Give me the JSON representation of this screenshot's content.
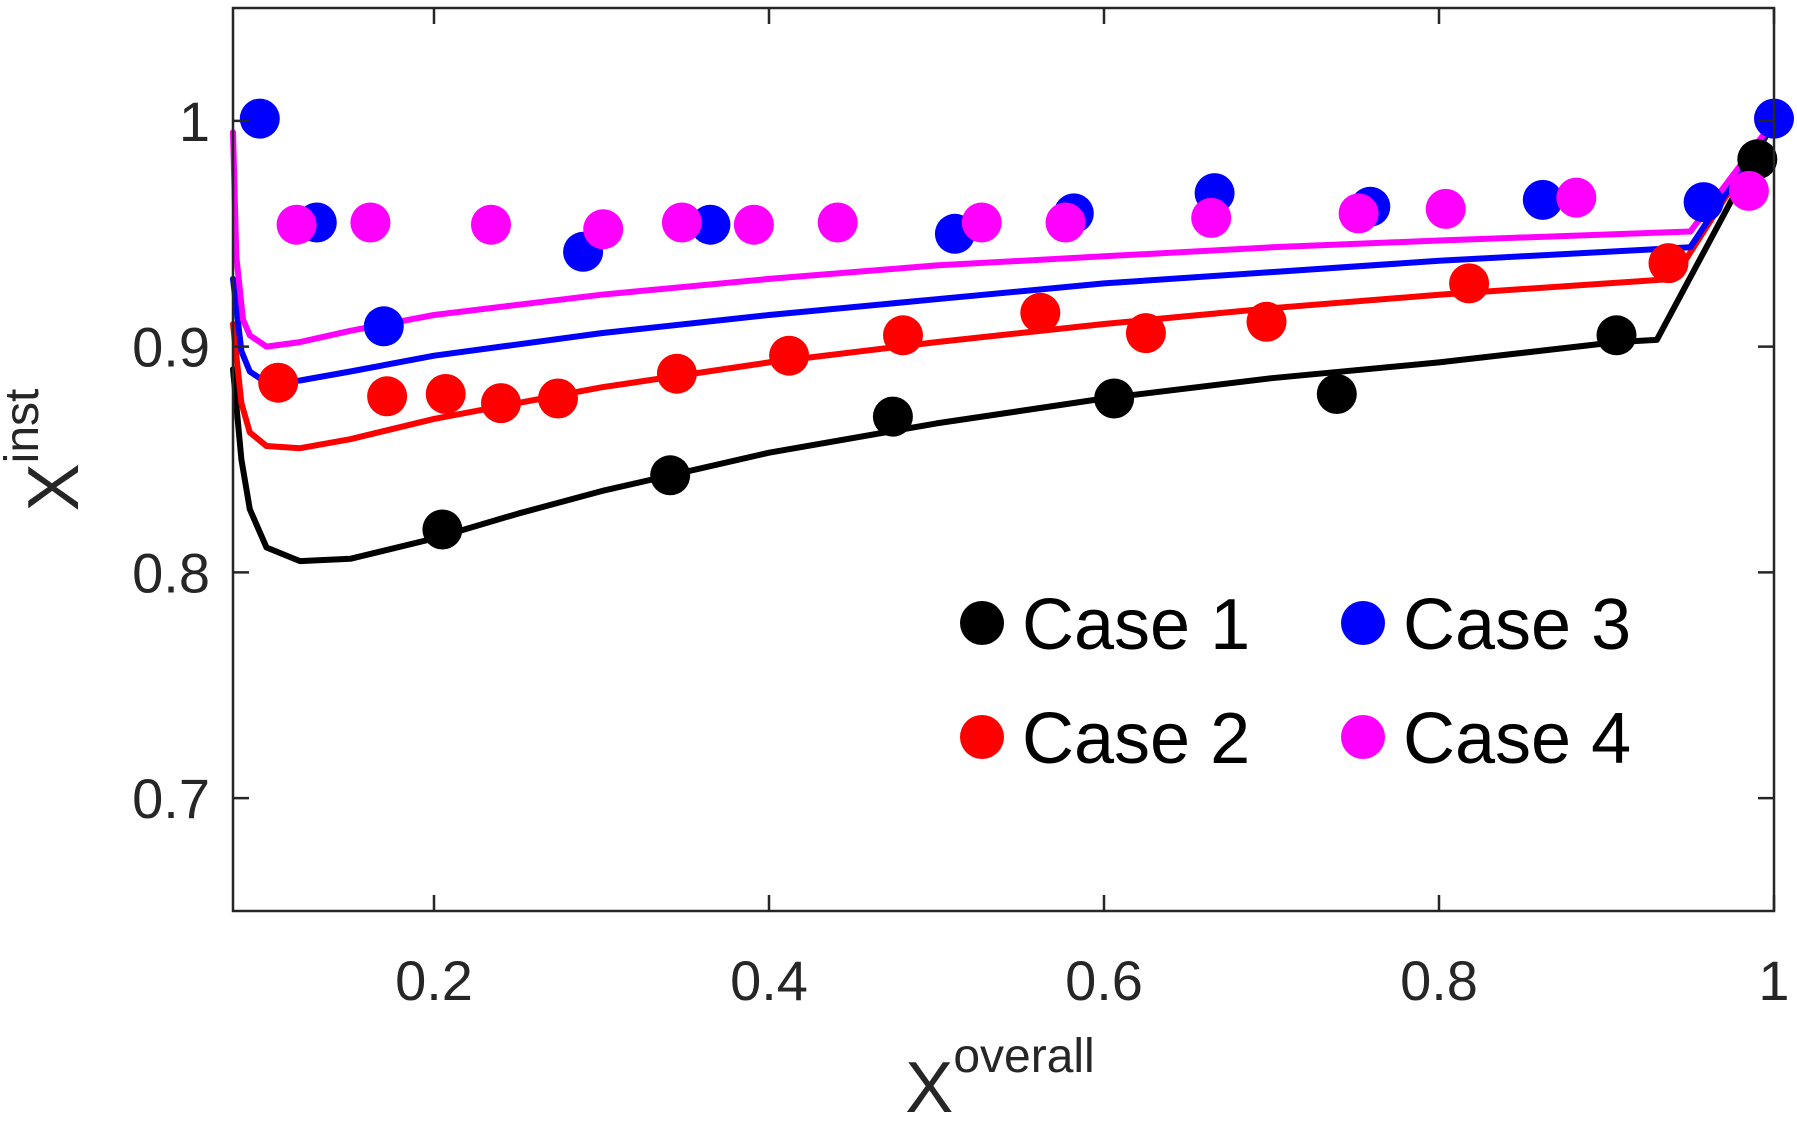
{
  "chart_data": {
    "type": "scatter",
    "title": "",
    "xlabel": {
      "base": "X",
      "sup": "overall"
    },
    "ylabel": {
      "base": "X",
      "sup": "inst"
    },
    "xlim": [
      0.08,
      1.0
    ],
    "ylim": [
      0.65,
      1.05
    ],
    "xticks": [
      0.2,
      0.4,
      0.6,
      0.8,
      1.0
    ],
    "xtick_labels": [
      "0.2",
      "0.4",
      "0.6",
      "0.8",
      "1"
    ],
    "yticks": [
      0.7,
      0.8,
      0.9,
      1.0
    ],
    "ytick_labels": [
      "0.7",
      "0.8",
      "0.9",
      "1"
    ],
    "grid": false,
    "legend_position": "lower-right",
    "series": [
      {
        "name": "Case 1",
        "color": "#000000",
        "points": [
          [
            0.205,
            0.819
          ],
          [
            0.341,
            0.843
          ],
          [
            0.474,
            0.869
          ],
          [
            0.606,
            0.877
          ],
          [
            0.739,
            0.879
          ],
          [
            0.906,
            0.905
          ],
          [
            0.99,
            0.983
          ]
        ],
        "fit": [
          [
            0.08,
            0.89
          ],
          [
            0.085,
            0.85
          ],
          [
            0.09,
            0.828
          ],
          [
            0.1,
            0.811
          ],
          [
            0.12,
            0.805
          ],
          [
            0.15,
            0.806
          ],
          [
            0.2,
            0.815
          ],
          [
            0.25,
            0.826
          ],
          [
            0.3,
            0.836
          ],
          [
            0.4,
            0.853
          ],
          [
            0.5,
            0.866
          ],
          [
            0.6,
            0.877
          ],
          [
            0.7,
            0.886
          ],
          [
            0.8,
            0.893
          ],
          [
            0.906,
            0.902
          ],
          [
            0.93,
            0.903
          ],
          [
            1.0,
            1.0
          ]
        ]
      },
      {
        "name": "Case 2",
        "color": "#ff0000",
        "points": [
          [
            0.107,
            0.884
          ],
          [
            0.172,
            0.878
          ],
          [
            0.207,
            0.879
          ],
          [
            0.24,
            0.875
          ],
          [
            0.274,
            0.877
          ],
          [
            0.345,
            0.888
          ],
          [
            0.412,
            0.896
          ],
          [
            0.48,
            0.905
          ],
          [
            0.562,
            0.915
          ],
          [
            0.625,
            0.906
          ],
          [
            0.697,
            0.911
          ],
          [
            0.818,
            0.928
          ],
          [
            0.937,
            0.937
          ]
        ],
        "fit": [
          [
            0.08,
            0.91
          ],
          [
            0.085,
            0.875
          ],
          [
            0.09,
            0.862
          ],
          [
            0.1,
            0.856
          ],
          [
            0.12,
            0.855
          ],
          [
            0.15,
            0.859
          ],
          [
            0.2,
            0.868
          ],
          [
            0.3,
            0.882
          ],
          [
            0.4,
            0.893
          ],
          [
            0.5,
            0.902
          ],
          [
            0.6,
            0.91
          ],
          [
            0.7,
            0.917
          ],
          [
            0.8,
            0.923
          ],
          [
            0.94,
            0.93
          ],
          [
            1.0,
            1.0
          ]
        ]
      },
      {
        "name": "Case 3",
        "color": "#0000ff",
        "points": [
          [
            0.096,
            1.001
          ],
          [
            0.13,
            0.955
          ],
          [
            0.17,
            0.909
          ],
          [
            0.289,
            0.942
          ],
          [
            0.365,
            0.954
          ],
          [
            0.511,
            0.95
          ],
          [
            0.582,
            0.959
          ],
          [
            0.666,
            0.968
          ],
          [
            0.759,
            0.962
          ],
          [
            0.862,
            0.965
          ],
          [
            0.958,
            0.964
          ],
          [
            1.0,
            1.001
          ]
        ],
        "fit": [
          [
            0.08,
            0.93
          ],
          [
            0.085,
            0.898
          ],
          [
            0.09,
            0.889
          ],
          [
            0.1,
            0.884
          ],
          [
            0.12,
            0.885
          ],
          [
            0.15,
            0.889
          ],
          [
            0.2,
            0.896
          ],
          [
            0.3,
            0.906
          ],
          [
            0.4,
            0.914
          ],
          [
            0.5,
            0.921
          ],
          [
            0.6,
            0.928
          ],
          [
            0.7,
            0.933
          ],
          [
            0.8,
            0.938
          ],
          [
            0.95,
            0.944
          ],
          [
            1.0,
            1.0
          ]
        ]
      },
      {
        "name": "Case 4",
        "color": "#ff00ff",
        "points": [
          [
            0.118,
            0.954
          ],
          [
            0.162,
            0.955
          ],
          [
            0.234,
            0.954
          ],
          [
            0.301,
            0.952
          ],
          [
            0.348,
            0.955
          ],
          [
            0.391,
            0.954
          ],
          [
            0.441,
            0.955
          ],
          [
            0.527,
            0.955
          ],
          [
            0.577,
            0.955
          ],
          [
            0.664,
            0.957
          ],
          [
            0.752,
            0.959
          ],
          [
            0.804,
            0.961
          ],
          [
            0.882,
            0.966
          ],
          [
            0.985,
            0.969
          ]
        ],
        "fit": [
          [
            0.08,
            0.995
          ],
          [
            0.082,
            0.94
          ],
          [
            0.086,
            0.912
          ],
          [
            0.09,
            0.905
          ],
          [
            0.1,
            0.9
          ],
          [
            0.12,
            0.902
          ],
          [
            0.15,
            0.907
          ],
          [
            0.2,
            0.914
          ],
          [
            0.3,
            0.923
          ],
          [
            0.4,
            0.93
          ],
          [
            0.5,
            0.936
          ],
          [
            0.6,
            0.94
          ],
          [
            0.7,
            0.944
          ],
          [
            0.8,
            0.947
          ],
          [
            0.95,
            0.951
          ],
          [
            1.0,
            1.0
          ]
        ]
      }
    ]
  }
}
